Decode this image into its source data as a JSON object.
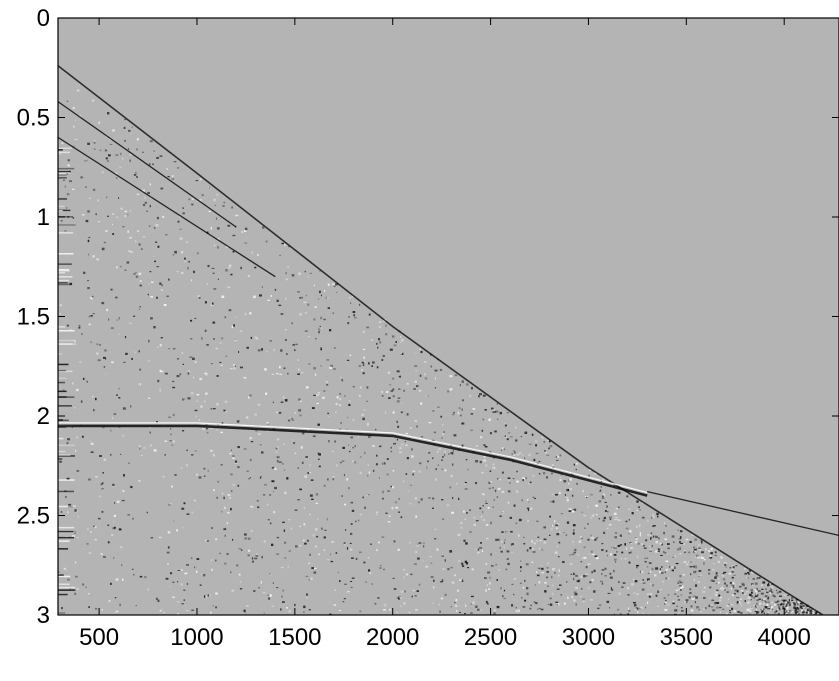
{
  "chart_data": {
    "type": "heatmap",
    "title": "",
    "xlabel": "",
    "ylabel": "",
    "xlim": [
      290,
      4280
    ],
    "ylim": [
      0,
      3
    ],
    "y_reversed": true,
    "grid": false,
    "colormap": "gray",
    "background_color": "#b4b4b4",
    "x_ticks": [
      500,
      1000,
      1500,
      2000,
      2500,
      3000,
      3500,
      4000
    ],
    "x_tick_labels": [
      "500",
      "1000",
      "1500",
      "2000",
      "2500",
      "3000",
      "3500",
      "4000"
    ],
    "y_ticks": [
      0,
      0.5,
      1,
      1.5,
      2,
      2.5,
      3
    ],
    "y_tick_labels": [
      "0",
      "0.5",
      "1",
      "1.5",
      "2",
      "2.5",
      "3"
    ],
    "first_break": {
      "x": [
        290,
        1000,
        2000,
        3000,
        4000,
        4280
      ],
      "y": [
        0.24,
        0.78,
        1.55,
        2.26,
        2.88,
        3.05
      ]
    },
    "events": [
      {
        "x": [
          290,
          1000,
          2000,
          2600,
          3300
        ],
        "y": [
          2.05,
          2.05,
          2.1,
          2.22,
          2.4
        ]
      },
      {
        "x": [
          3300,
          4280
        ],
        "y": [
          2.38,
          2.6
        ]
      },
      {
        "x": [
          290,
          1200
        ],
        "y": [
          0.42,
          1.05
        ]
      },
      {
        "x": [
          290,
          1400
        ],
        "y": [
          0.6,
          1.3
        ]
      }
    ]
  }
}
